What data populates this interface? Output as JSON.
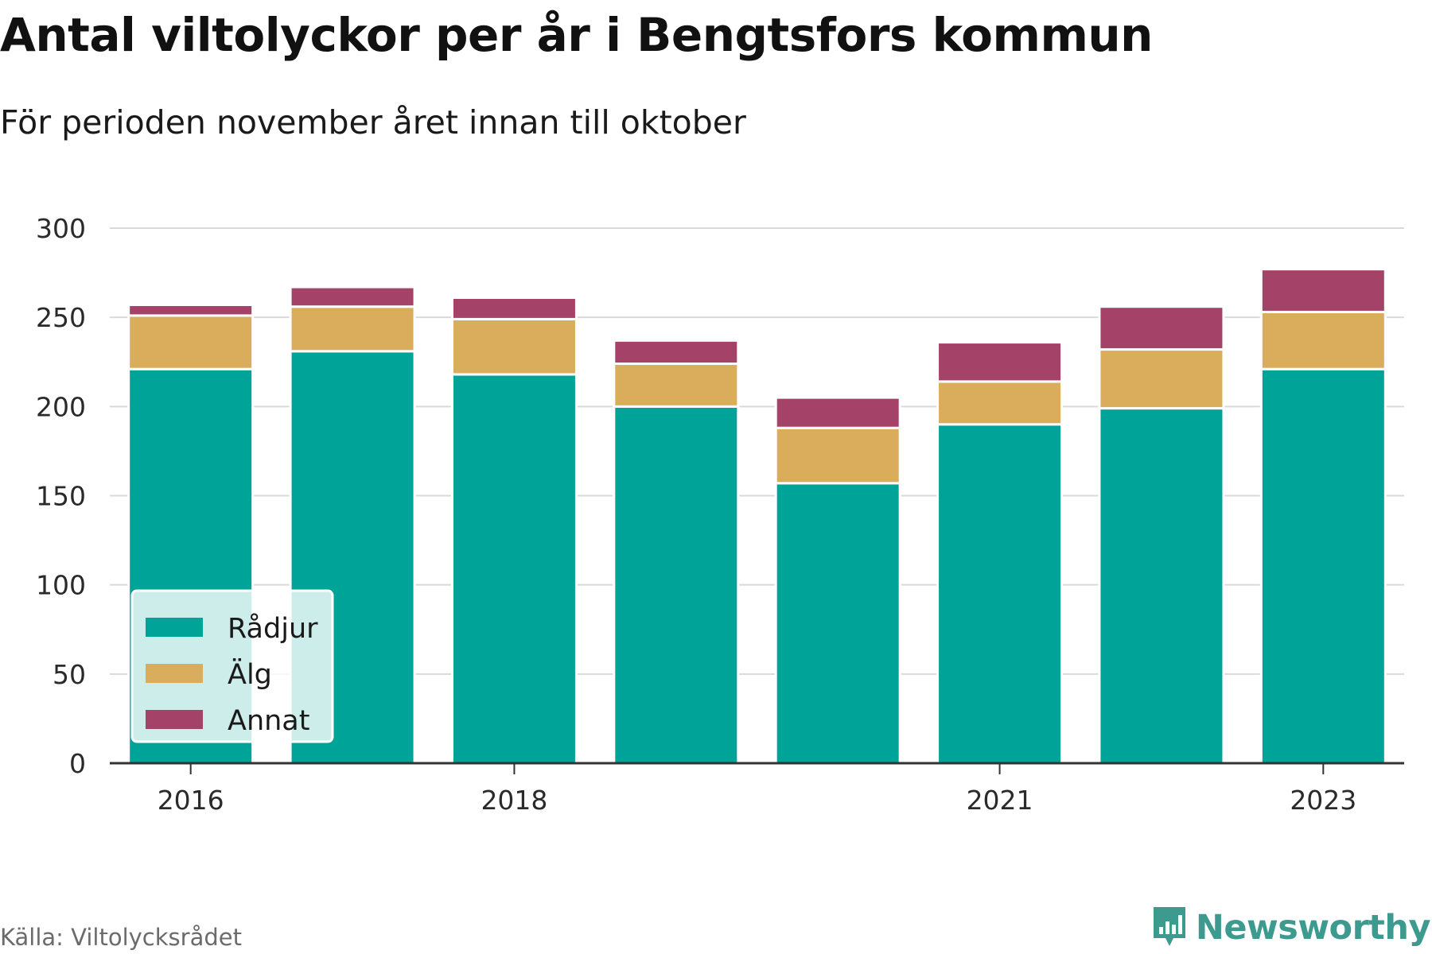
{
  "header": {
    "title": "Antal viltolyckor per år i Bengtsfors kommun",
    "subtitle": "För perioden november året innan till oktober"
  },
  "footer": {
    "source": "Källa: Viltolycksrådet",
    "brand": "Newsworthy",
    "brand_icon": "bar-chart-icon"
  },
  "colors": {
    "radjur": "#00a398",
    "alg": "#d9ad5b",
    "annat": "#a54268",
    "grid": "#d9d9d9",
    "axis": "#333333",
    "brand": "#3d9a8f"
  },
  "chart_data": {
    "type": "bar",
    "stacked": true,
    "categories": [
      "2016",
      "2017",
      "2018",
      "2019",
      "2020",
      "2021",
      "2022",
      "2023"
    ],
    "x_tick_labels": [
      "2016",
      "",
      "2018",
      "",
      "",
      "2021",
      "",
      "2023"
    ],
    "series": [
      {
        "name": "Rådjur",
        "color": "#00a398",
        "values": [
          221,
          231,
          218,
          200,
          157,
          190,
          199,
          221
        ]
      },
      {
        "name": "Älg",
        "color": "#d9ad5b",
        "values": [
          30,
          25,
          31,
          24,
          31,
          24,
          33,
          32
        ]
      },
      {
        "name": "Annat",
        "color": "#a54268",
        "values": [
          6,
          11,
          12,
          13,
          17,
          22,
          24,
          24
        ]
      }
    ],
    "ylim": [
      0,
      300
    ],
    "yticks": [
      0,
      50,
      100,
      150,
      200,
      250,
      300
    ],
    "grid": true,
    "legend_position": "bottom-left",
    "xlabel": "",
    "ylabel": ""
  }
}
